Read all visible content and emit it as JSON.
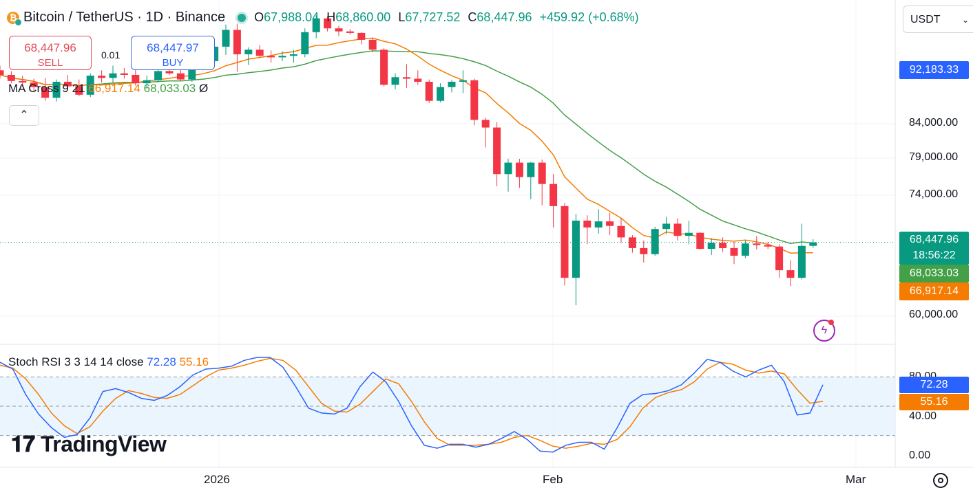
{
  "header": {
    "title": "Bitcoin / TetherUS · 1D · Binance",
    "coin_glyph": "₿",
    "o_label": "O",
    "o": "67,988.04",
    "h_label": "H",
    "h": "68,860.00",
    "l_label": "L",
    "l": "67,727.52",
    "c_label": "C",
    "c": "68,447.96",
    "change": "+459.92 (+0.68%)"
  },
  "trade": {
    "sell_price": "68,447.96",
    "sell_label": "SELL",
    "spread": "0.01",
    "buy_price": "68,447.97",
    "buy_label": "BUY"
  },
  "ma_legend": {
    "name": "MA Cross 9 21",
    "fast": "66,917.14",
    "slow": "68,033.03",
    "extra": "Ø"
  },
  "collapse_glyph": "⌃",
  "currency": "USDT",
  "price_axis": {
    "labels": [
      "84,000.00",
      "79,000.00",
      "74,000.00",
      "60,000.00"
    ],
    "tags": {
      "top": "92,183.33",
      "last": "68,447.96",
      "countdown": "18:56:22",
      "slow": "68,033.03",
      "fast": "66,917.14"
    }
  },
  "stoch_legend": {
    "name": "Stoch RSI 3 3 14 14 close",
    "k": "72.28",
    "d": "55.16"
  },
  "stoch_axis": {
    "labels": [
      "80.00",
      "40.00",
      "0.00"
    ],
    "k_tag": "72.28",
    "d_tag": "55.16"
  },
  "x_axis": [
    "2026",
    "Feb",
    "Mar"
  ],
  "logo": "TradingView",
  "colors": {
    "up": "#089981",
    "down": "#f23645",
    "fast": "#f57c00",
    "slow": "#43a047",
    "k": "#2962ff",
    "d": "#f57c00"
  },
  "chart_data": {
    "type": "candlestick",
    "title": "Bitcoin / TetherUS · 1D · Binance",
    "ylim": [
      58000,
      96000
    ],
    "candles": [
      [
        91000,
        91600,
        89900,
        90400
      ],
      [
        90400,
        90900,
        89300,
        89600
      ],
      [
        89600,
        90300,
        88800,
        89400
      ],
      [
        89400,
        89900,
        88300,
        88800
      ],
      [
        88800,
        90000,
        87000,
        87400
      ],
      [
        87400,
        89800,
        86900,
        89500
      ],
      [
        89500,
        90400,
        88500,
        88900
      ],
      [
        88900,
        89800,
        87600,
        87800
      ],
      [
        87800,
        90600,
        87500,
        90300
      ],
      [
        90300,
        91000,
        89400,
        90000
      ],
      [
        90000,
        91600,
        89400,
        90600
      ],
      [
        90600,
        91300,
        89900,
        90400
      ],
      [
        90400,
        91500,
        89000,
        89300
      ],
      [
        89300,
        90300,
        88600,
        89700
      ],
      [
        89700,
        91200,
        89400,
        90900
      ],
      [
        90900,
        91800,
        90400,
        90600
      ],
      [
        90600,
        91500,
        89600,
        89800
      ],
      [
        89800,
        91800,
        89500,
        91500
      ],
      [
        91500,
        92600,
        91000,
        92200
      ],
      [
        92200,
        94300,
        91900,
        94100
      ],
      [
        94100,
        97000,
        93000,
        96300
      ],
      [
        96300,
        97100,
        90800,
        93100
      ],
      [
        93100,
        94000,
        91700,
        93700
      ],
      [
        93700,
        94300,
        92600,
        92900
      ],
      [
        92900,
        93600,
        92000,
        92700
      ],
      [
        92700,
        93500,
        92200,
        92900
      ],
      [
        92900,
        93700,
        92000,
        93100
      ],
      [
        93100,
        96500,
        92700,
        96000
      ],
      [
        96000,
        98200,
        95200,
        97800
      ],
      [
        97800,
        98100,
        96100,
        96500
      ],
      [
        96500,
        96800,
        95500,
        96100
      ],
      [
        96100,
        96400,
        95700,
        95900
      ],
      [
        95900,
        96000,
        94400,
        95000
      ],
      [
        95000,
        95300,
        93400,
        93700
      ],
      [
        93700,
        93900,
        88900,
        89100
      ],
      [
        89100,
        90600,
        88500,
        90100
      ],
      [
        90100,
        91800,
        88700,
        89900
      ],
      [
        89900,
        91000,
        89100,
        89500
      ],
      [
        89500,
        89800,
        86700,
        87000
      ],
      [
        87000,
        89300,
        86800,
        88800
      ],
      [
        88800,
        89700,
        88100,
        89500
      ],
      [
        89500,
        91000,
        88000,
        89700
      ],
      [
        89700,
        89900,
        83800,
        84500
      ],
      [
        84500,
        84800,
        80900,
        83500
      ],
      [
        83500,
        84200,
        75800,
        77400
      ],
      [
        77400,
        79400,
        75100,
        78900
      ],
      [
        78900,
        79400,
        75600,
        77000
      ],
      [
        77000,
        79000,
        74100,
        78900
      ],
      [
        78900,
        79300,
        73300,
        76100
      ],
      [
        76100,
        77400,
        70400,
        73200
      ],
      [
        73200,
        73600,
        62800,
        63800
      ],
      [
        63800,
        72200,
        60200,
        71300
      ],
      [
        71300,
        72000,
        68200,
        70400
      ],
      [
        70400,
        72800,
        69600,
        71200
      ],
      [
        71200,
        72300,
        69400,
        70600
      ],
      [
        70600,
        71600,
        68400,
        69100
      ],
      [
        69100,
        69400,
        67100,
        67700
      ],
      [
        67700,
        68700,
        65800,
        66900
      ],
      [
        66900,
        70500,
        66700,
        70200
      ],
      [
        70200,
        71800,
        69500,
        70900
      ],
      [
        70900,
        71600,
        68700,
        69300
      ],
      [
        69300,
        71300,
        68200,
        69700
      ],
      [
        69700,
        69800,
        67500,
        67600
      ],
      [
        67600,
        69000,
        66800,
        68400
      ],
      [
        68400,
        69100,
        67200,
        67700
      ],
      [
        67700,
        68500,
        65600,
        66700
      ],
      [
        66700,
        68700,
        66400,
        68300
      ],
      [
        68300,
        69300,
        67500,
        68100
      ],
      [
        68100,
        68500,
        67600,
        67900
      ],
      [
        67900,
        68200,
        63800,
        64800
      ],
      [
        64800,
        66100,
        62700,
        63800
      ],
      [
        63800,
        70900,
        63600,
        67990
      ],
      [
        67990,
        68860,
        67730,
        68450
      ]
    ],
    "ma_fast_period": 9,
    "ma_slow_period": 21,
    "stoch_rsi": {
      "k": [
        95,
        88,
        62,
        42,
        28,
        18,
        21,
        38,
        65,
        68,
        64,
        58,
        56,
        61,
        70,
        82,
        88,
        89,
        91,
        97,
        100,
        100,
        90,
        70,
        48,
        43,
        42,
        48,
        70,
        85,
        75,
        55,
        30,
        10,
        7,
        11,
        11,
        8,
        11,
        17,
        24,
        16,
        4,
        3,
        10,
        13,
        13,
        6,
        28,
        53,
        62,
        63,
        66,
        72,
        84,
        98,
        95,
        86,
        80,
        87,
        92,
        75,
        41,
        43,
        72
      ],
      "d": [
        92,
        89,
        78,
        62,
        43,
        30,
        22,
        29,
        45,
        58,
        66,
        63,
        59,
        58,
        62,
        71,
        80,
        87,
        89,
        92,
        96,
        99,
        97,
        87,
        70,
        53,
        45,
        44,
        52,
        65,
        78,
        73,
        55,
        34,
        17,
        10,
        10,
        10,
        11,
        13,
        18,
        20,
        15,
        9,
        7,
        9,
        12,
        11,
        16,
        29,
        48,
        59,
        64,
        67,
        75,
        88,
        95,
        93,
        87,
        84,
        86,
        83,
        67,
        53,
        55
      ]
    },
    "legend": "top-left"
  }
}
